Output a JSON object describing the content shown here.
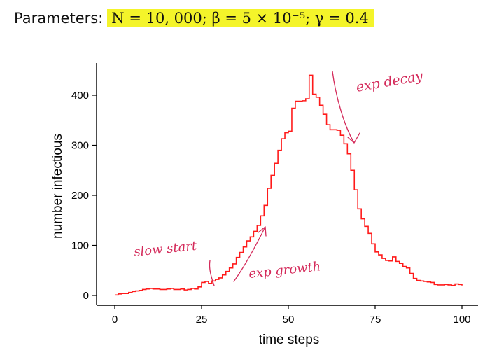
{
  "header": {
    "prefix": "Parameters:",
    "equation": "N = 10, 000; β = 5 × 10⁻⁵; γ = 0.4"
  },
  "colors": {
    "series": "#ff1a1a",
    "annotation": "#d42a5a",
    "highlight": "#f4f42a",
    "axis": "#000000"
  },
  "chart_data": {
    "type": "line",
    "style": "step",
    "title": "",
    "xlabel": "time steps",
    "ylabel": "number infectious",
    "xlim": [
      0,
      100
    ],
    "ylim": [
      0,
      440
    ],
    "xticks": [
      0,
      25,
      50,
      75,
      100
    ],
    "yticks": [
      0,
      100,
      200,
      300,
      400
    ],
    "grid": false,
    "x": [
      0,
      1,
      2,
      3,
      4,
      5,
      6,
      7,
      8,
      9,
      10,
      11,
      12,
      13,
      14,
      15,
      16,
      17,
      18,
      19,
      20,
      21,
      22,
      23,
      24,
      25,
      26,
      27,
      28,
      29,
      30,
      31,
      32,
      33,
      34,
      35,
      36,
      37,
      38,
      39,
      40,
      41,
      42,
      43,
      44,
      45,
      46,
      47,
      48,
      49,
      50,
      51,
      52,
      53,
      54,
      55,
      56,
      57,
      58,
      59,
      60,
      61,
      62,
      63,
      64,
      65,
      66,
      67,
      68,
      69,
      70,
      71,
      72,
      73,
      74,
      75,
      76,
      77,
      78,
      79,
      80,
      81,
      82,
      83,
      84,
      85,
      86,
      87,
      88,
      89,
      90,
      91,
      92,
      93,
      94,
      95,
      96,
      97,
      98,
      99,
      100
    ],
    "series": [
      {
        "values": [
          1,
          3,
          4,
          4,
          6,
          8,
          9,
          10,
          12,
          13,
          14,
          13,
          13,
          12,
          12,
          13,
          14,
          12,
          12,
          13,
          11,
          12,
          14,
          13,
          17,
          26,
          28,
          24,
          29,
          32,
          35,
          41,
          48,
          55,
          63,
          76,
          86,
          97,
          109,
          117,
          128,
          140,
          159,
          180,
          214,
          240,
          264,
          290,
          313,
          325,
          328,
          374,
          388,
          388,
          389,
          393,
          440,
          402,
          396,
          380,
          362,
          341,
          331,
          331,
          330,
          320,
          303,
          283,
          250,
          211,
          173,
          153,
          138,
          124,
          103,
          87,
          81,
          74,
          70,
          69,
          77,
          68,
          64,
          58,
          55,
          44,
          34,
          30,
          29,
          28,
          27,
          26,
          22,
          21,
          21,
          22,
          21,
          20,
          23,
          22,
          20
        ]
      }
    ],
    "annotations": [
      "slow start",
      "exp growth",
      "exp decay"
    ]
  }
}
